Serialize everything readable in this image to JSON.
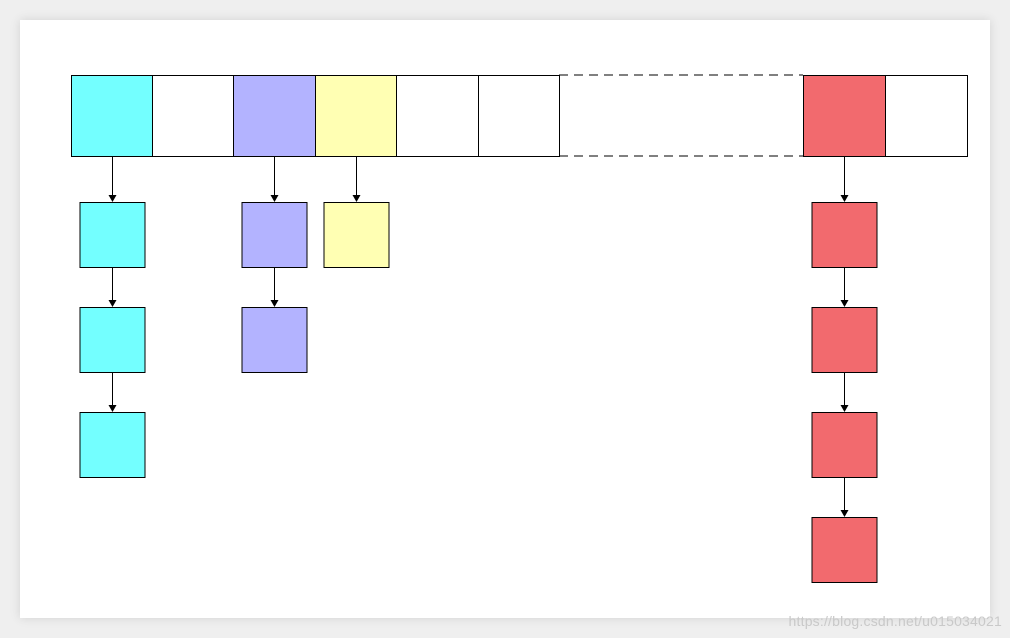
{
  "palette": {
    "cyan": "#73FFFF",
    "purple": "#B3B3FF",
    "yellow": "#FFFFB3",
    "red": "#F26A6E",
    "empty": "#FFFFFF",
    "stroke": "#000000"
  },
  "hash_table": {
    "slots": [
      {
        "id": "slot-0",
        "color": "cyan",
        "chain_length": 3
      },
      {
        "id": "slot-1",
        "color": "empty",
        "chain_length": 0
      },
      {
        "id": "slot-2",
        "color": "purple",
        "chain_length": 2
      },
      {
        "id": "slot-3",
        "color": "yellow",
        "chain_length": 1
      },
      {
        "id": "slot-4",
        "color": "empty",
        "chain_length": 0
      },
      {
        "id": "slot-5",
        "color": "empty",
        "chain_length": 0
      },
      {
        "id": "slot-ellipsis",
        "color": "empty",
        "chain_length": 0,
        "dashed_gap": true
      },
      {
        "id": "slot-last-1",
        "color": "red",
        "chain_length": 4
      },
      {
        "id": "slot-last",
        "color": "empty",
        "chain_length": 0
      }
    ]
  },
  "watermark": "https://blog.csdn.net/u015034021"
}
